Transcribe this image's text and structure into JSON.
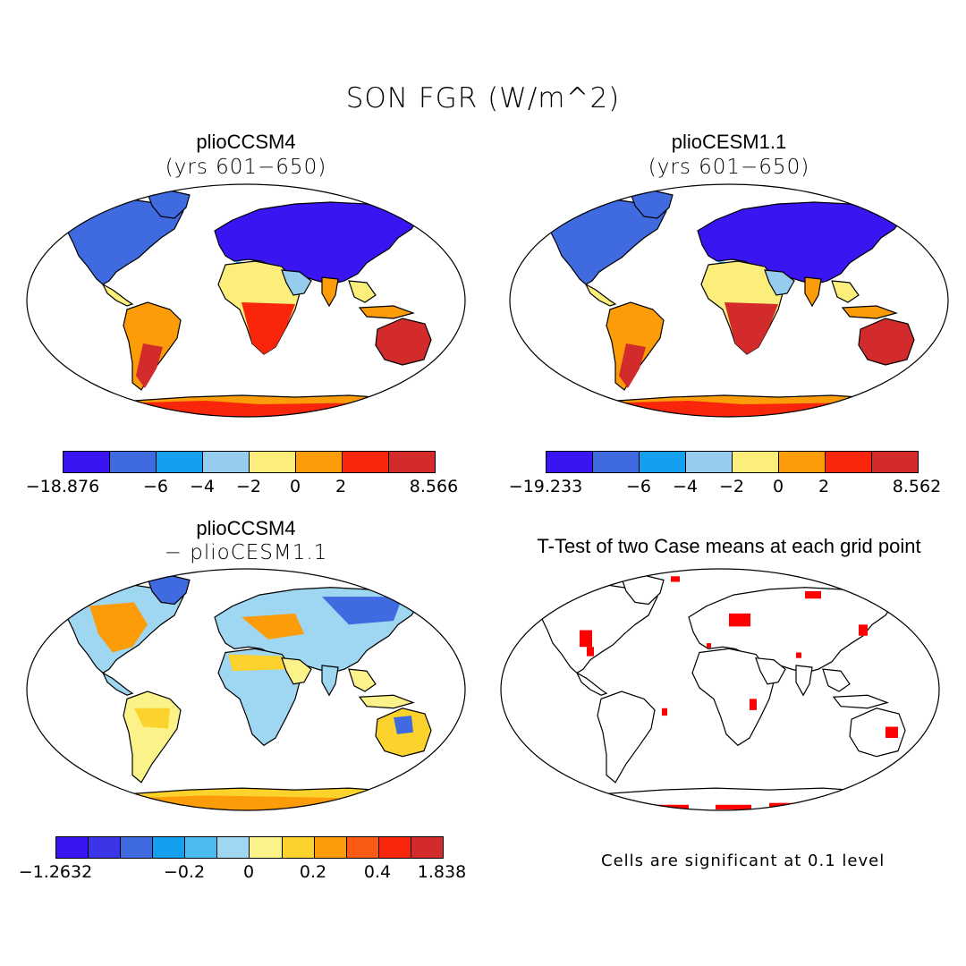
{
  "figure": {
    "title": "SON FGR (W/m^2)"
  },
  "panels": [
    {
      "title": "plioCCSM4",
      "subtitle": "(yrs 601−650)"
    },
    {
      "title": "plioCESM1.1",
      "subtitle": "(yrs 601−650)"
    },
    {
      "title": "plioCCSM4",
      "subtitle": "− plioCESM1.1"
    },
    {
      "title": "T-Test of two Case means at each grid point",
      "subtitle": ""
    }
  ],
  "colorbars": {
    "cb1": {
      "colors": [
        "#3b14f2",
        "#3f6ae0",
        "#149fef",
        "#96ccee",
        "#fbee7a",
        "#fb9c08",
        "#f9260c",
        "#d32b2b"
      ],
      "labels": [
        "−18.876",
        "−6",
        "−4",
        "−2",
        "0",
        "2",
        "8.566"
      ]
    },
    "cb2": {
      "colors": [
        "#3b14f2",
        "#3f6ae0",
        "#149fef",
        "#96ccee",
        "#fbee7a",
        "#fb9c08",
        "#f9260c",
        "#d32b2b"
      ],
      "labels": [
        "−19.233",
        "−6",
        "−4",
        "−2",
        "0",
        "2",
        "8.562"
      ]
    },
    "cb3": {
      "colors": [
        "#3b14f2",
        "#3c35e8",
        "#3f6ae0",
        "#149fef",
        "#4cbcf0",
        "#9fd6f1",
        "#fbf38a",
        "#fcd22c",
        "#fb9c08",
        "#fb5a14",
        "#f9260c",
        "#d32b2b"
      ],
      "labels": [
        "−1.2632",
        "−0.2",
        "0",
        "0.2",
        "0.4",
        "1.838"
      ]
    }
  },
  "footnote": "Cells are significant at 0.1 level"
}
